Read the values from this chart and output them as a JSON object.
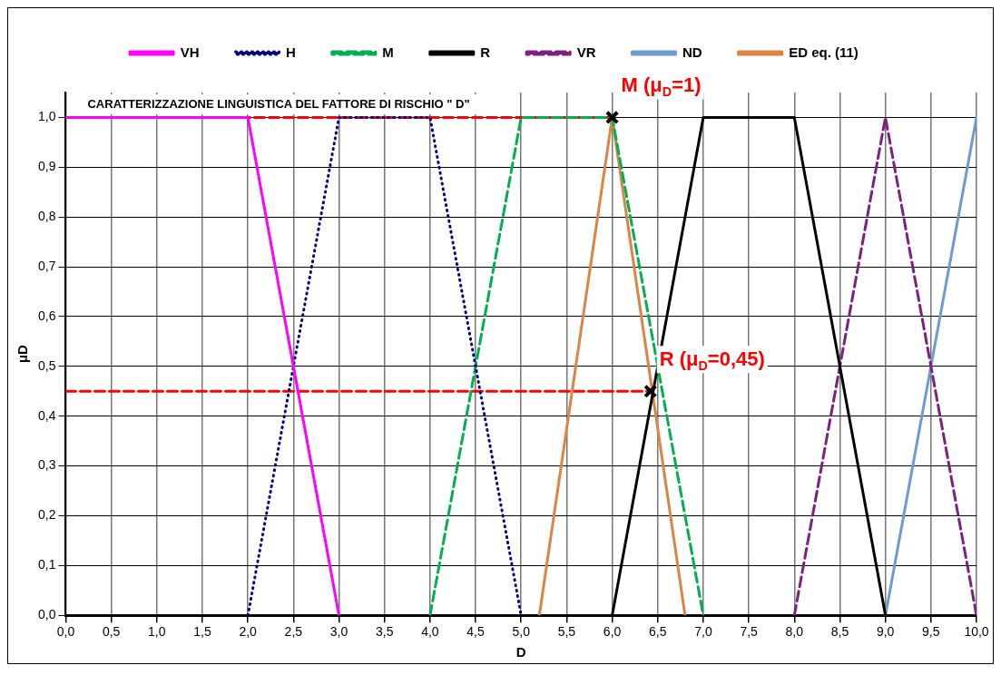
{
  "chart_data": {
    "type": "line",
    "title": "CARATTERIZZAZIONE LINGUISTICA DEL FATTORE DI RISCHIO \" D\"",
    "xlabel": "D",
    "ylabel": "μD",
    "xlim": [
      0,
      10
    ],
    "ylim": [
      0,
      1.05
    ],
    "xticks": [
      {
        "value": 0,
        "label": "0,0"
      },
      {
        "value": 0.5,
        "label": "0,5"
      },
      {
        "value": 1,
        "label": "1,0"
      },
      {
        "value": 1.5,
        "label": "1,5"
      },
      {
        "value": 2,
        "label": "2,0"
      },
      {
        "value": 2.5,
        "label": "2,5"
      },
      {
        "value": 3,
        "label": "3,0"
      },
      {
        "value": 3.5,
        "label": "3,5"
      },
      {
        "value": 4,
        "label": "4,0"
      },
      {
        "value": 4.5,
        "label": "4,5"
      },
      {
        "value": 5,
        "label": "5,0"
      },
      {
        "value": 5.5,
        "label": "5,5"
      },
      {
        "value": 6,
        "label": "6,0"
      },
      {
        "value": 6.5,
        "label": "6,5"
      },
      {
        "value": 7,
        "label": "7,0"
      },
      {
        "value": 7.5,
        "label": "7,5"
      },
      {
        "value": 8,
        "label": "8,0"
      },
      {
        "value": 8.5,
        "label": "8,5"
      },
      {
        "value": 9,
        "label": "9,0"
      },
      {
        "value": 9.5,
        "label": "9,5"
      },
      {
        "value": 10,
        "label": "10,0"
      }
    ],
    "yticks": [
      {
        "value": 0,
        "label": "0,0"
      },
      {
        "value": 0.1,
        "label": "0,1"
      },
      {
        "value": 0.2,
        "label": "0,2"
      },
      {
        "value": 0.3,
        "label": "0,3"
      },
      {
        "value": 0.4,
        "label": "0,4"
      },
      {
        "value": 0.5,
        "label": "0,5"
      },
      {
        "value": 0.6,
        "label": "0,6"
      },
      {
        "value": 0.7,
        "label": "0,7"
      },
      {
        "value": 0.8,
        "label": "0,8"
      },
      {
        "value": 0.9,
        "label": "0,9"
      },
      {
        "value": 1,
        "label": "1,0"
      }
    ],
    "grid": true,
    "legend": "top",
    "marker": "none",
    "line_style": "solid",
    "series": [
      {
        "name": "VH",
        "color": "#ff00ff",
        "x": [
          0,
          2,
          3
        ],
        "values": [
          1,
          1,
          0
        ]
      },
      {
        "name": "H",
        "color": "#000080",
        "line_style": "dotted",
        "x": [
          2,
          3,
          4,
          5
        ],
        "values": [
          0,
          1,
          1,
          0
        ]
      },
      {
        "name": "M",
        "color": "#00b050",
        "line_style": "dashed",
        "x": [
          4,
          5,
          6,
          7
        ],
        "values": [
          0,
          1,
          1,
          0
        ]
      },
      {
        "name": "R",
        "color": "#000000",
        "x": [
          6,
          7,
          8,
          9
        ],
        "values": [
          0,
          1,
          1,
          0
        ]
      },
      {
        "name": "VR",
        "color": "#7f1f7f",
        "line_style": "dashed",
        "x": [
          8,
          9,
          10
        ],
        "values": [
          0,
          1,
          0
        ]
      },
      {
        "name": "ND",
        "color": "#6d9bd1",
        "x": [
          9,
          10
        ],
        "values": [
          0,
          1
        ]
      },
      {
        "name": "ED eq. (11)",
        "color": "#dc8346",
        "x": [
          5.2,
          6,
          6.8
        ],
        "values": [
          0,
          1,
          0
        ]
      },
      {
        "color": "#ff0000",
        "line_style": "dashed",
        "x": [
          0,
          6
        ],
        "values": [
          1,
          1
        ]
      },
      {
        "color": "#ff0000",
        "line_style": "dashed",
        "x": [
          0,
          6.42
        ],
        "values": [
          0.45,
          0.45
        ]
      },
      {
        "type": "scatter",
        "color": "#000000",
        "marker": "cross",
        "x": [
          6,
          6.42
        ],
        "values": [
          1,
          0.45
        ]
      }
    ],
    "annotations": [
      {
        "text": "M (μ$_{D}$=1)",
        "x": 6,
        "y": 1
      },
      {
        "text": "R (μ$_{D}$=0,45)",
        "x": 6.42,
        "y": 0.45
      }
    ]
  }
}
